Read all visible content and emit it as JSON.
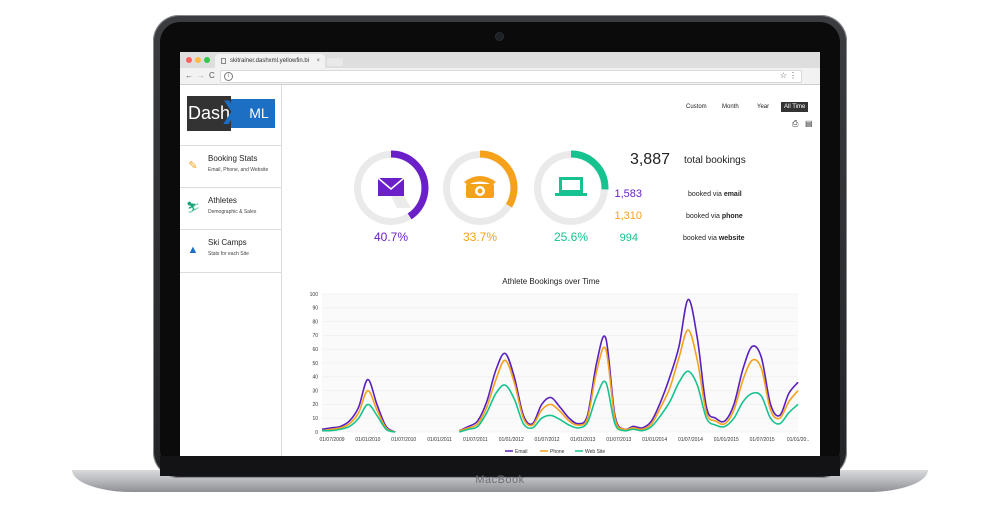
{
  "device": {
    "brand": "MacBook"
  },
  "browser": {
    "tab_title": "skitrainer.dashxml.yellowfin.bi",
    "tab_close": "×",
    "nav_back": "←",
    "nav_forward": "→",
    "nav_reload": "C",
    "star": "☆",
    "menu": "⋮"
  },
  "app": {
    "logo": {
      "left": "Dash",
      "mid": "X",
      "right": "ML"
    },
    "sidebar": {
      "items": [
        {
          "title": "Booking Stats",
          "subtitle": "Email, Phone, and Website",
          "icon": "pencil-icon"
        },
        {
          "title": "Athletes",
          "subtitle": "Demographic & Sales",
          "icon": "skier-icon"
        },
        {
          "title": "Ski Camps",
          "subtitle": "Stats for each Site",
          "icon": "mountain-icon"
        }
      ]
    },
    "ranges": [
      "Custom",
      "Month",
      "Year",
      "All Time"
    ],
    "active_range": "All Time",
    "tools": {
      "print": "⎙",
      "pdf": "▤"
    },
    "channels": [
      {
        "name": "email",
        "icon": "envelope-icon",
        "pct": "40.7%",
        "fraction": 0.407,
        "color": "#6a1fc9"
      },
      {
        "name": "phone",
        "icon": "telephone-icon",
        "pct": "33.7%",
        "fraction": 0.337,
        "color": "#f5a11a"
      },
      {
        "name": "website",
        "icon": "laptop-icon",
        "pct": "25.6%",
        "fraction": 0.256,
        "color": "#16c28f"
      }
    ],
    "totals": {
      "total": "3,887",
      "total_label": "total bookings",
      "email": "1,583",
      "email_prefix": "booked via",
      "email_word": "email",
      "phone": "1,310",
      "phone_prefix": "booked via",
      "phone_word": "phone",
      "website": "994",
      "website_prefix": "booked via",
      "website_word": "website"
    },
    "chart_title": "Athlete Bookings over Time"
  },
  "chart_data": {
    "type": "line",
    "title": "Athlete Bookings over Time",
    "ylim": [
      0,
      100
    ],
    "yticks": [
      0,
      10,
      20,
      30,
      40,
      50,
      60,
      70,
      80,
      90,
      100
    ],
    "xticks": [
      "01/07/2009",
      "01/01/2010",
      "01/07/2010",
      "01/01/2011",
      "01/07/2011",
      "01/01/2012",
      "01/07/2012",
      "01/01/2013",
      "01/07/2013",
      "01/01/2014",
      "01/07/2014",
      "01/01/2015",
      "01/07/2015",
      "01/01/20.."
    ],
    "x": [
      0.0,
      0.25,
      0.5,
      0.75,
      1.0,
      1.25,
      1.5,
      1.75,
      2.0,
      2.25,
      2.5,
      2.75,
      3.0,
      3.25,
      3.5,
      3.75,
      4.0,
      4.25,
      4.5,
      4.75,
      5.0,
      5.25,
      5.5,
      5.75,
      6.0,
      6.25,
      6.5,
      6.75,
      7.0,
      7.25,
      7.5,
      7.75,
      8.0,
      8.25,
      8.5,
      8.75,
      9.0,
      9.25,
      9.5,
      9.75,
      10.0,
      10.25,
      10.5,
      10.75,
      11.0,
      11.25,
      11.5,
      11.75,
      12.0,
      12.25,
      12.5,
      12.75,
      13.0
    ],
    "series": [
      {
        "name": "Email",
        "color": "#5a1fc0",
        "values": [
          2,
          3,
          4,
          8,
          18,
          38,
          20,
          4,
          0,
          null,
          null,
          null,
          null,
          null,
          null,
          1,
          4,
          8,
          22,
          45,
          57,
          40,
          12,
          6,
          20,
          25,
          18,
          10,
          6,
          12,
          50,
          68,
          12,
          2,
          4,
          3,
          8,
          22,
          40,
          62,
          96,
          68,
          18,
          10,
          8,
          20,
          46,
          62,
          54,
          20,
          12,
          28,
          36
        ]
      },
      {
        "name": "Phone",
        "color": "#f5a11a",
        "values": [
          1,
          2,
          3,
          6,
          14,
          30,
          16,
          3,
          0,
          null,
          null,
          null,
          null,
          null,
          null,
          1,
          3,
          6,
          18,
          38,
          52,
          36,
          10,
          5,
          16,
          20,
          15,
          8,
          5,
          10,
          44,
          60,
          10,
          2,
          3,
          2,
          6,
          18,
          32,
          54,
          74,
          52,
          14,
          8,
          6,
          16,
          38,
          52,
          46,
          16,
          10,
          22,
          30
        ]
      },
      {
        "name": "Web Site",
        "color": "#16c28f",
        "values": [
          1,
          1,
          2,
          4,
          10,
          20,
          12,
          2,
          0,
          null,
          null,
          null,
          null,
          null,
          null,
          0,
          2,
          4,
          14,
          28,
          34,
          24,
          6,
          3,
          10,
          12,
          9,
          5,
          3,
          7,
          26,
          36,
          6,
          1,
          2,
          1,
          4,
          12,
          22,
          36,
          44,
          34,
          10,
          5,
          4,
          10,
          22,
          28,
          26,
          10,
          6,
          14,
          20
        ]
      }
    ],
    "legend_position": "bottom"
  }
}
